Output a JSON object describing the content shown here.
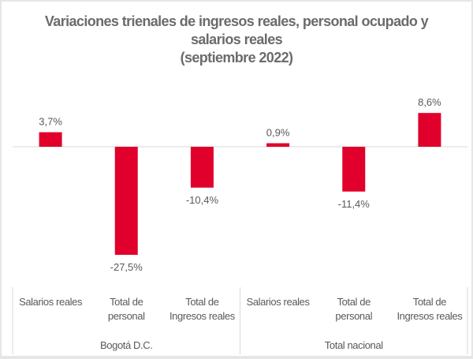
{
  "chart_data": {
    "type": "bar",
    "title": [
      "Variaciones trienales de ingresos reales, personal ocupado y",
      "salarios reales",
      "(septiembre 2022)"
    ],
    "groups": [
      {
        "name": "Bogotá D.C.",
        "categories": [
          [
            "Salarios reales"
          ],
          [
            "Total de",
            "personal"
          ],
          [
            "Total de",
            "Ingresos reales"
          ]
        ],
        "values": [
          3.7,
          -27.5,
          -10.4
        ],
        "labels": [
          "3,7%",
          "-27,5%",
          "-10,4%"
        ]
      },
      {
        "name": "Total nacional",
        "categories": [
          [
            "Salarios reales"
          ],
          [
            "Total de",
            "personal"
          ],
          [
            "Total de",
            "Ingresos reales"
          ]
        ],
        "values": [
          0.9,
          -11.4,
          8.6
        ],
        "labels": [
          "0,9%",
          "-11,4%",
          "8,6%"
        ]
      }
    ],
    "unit": "%",
    "grid": false,
    "legend": "none",
    "bar_color": "#e0002b"
  }
}
